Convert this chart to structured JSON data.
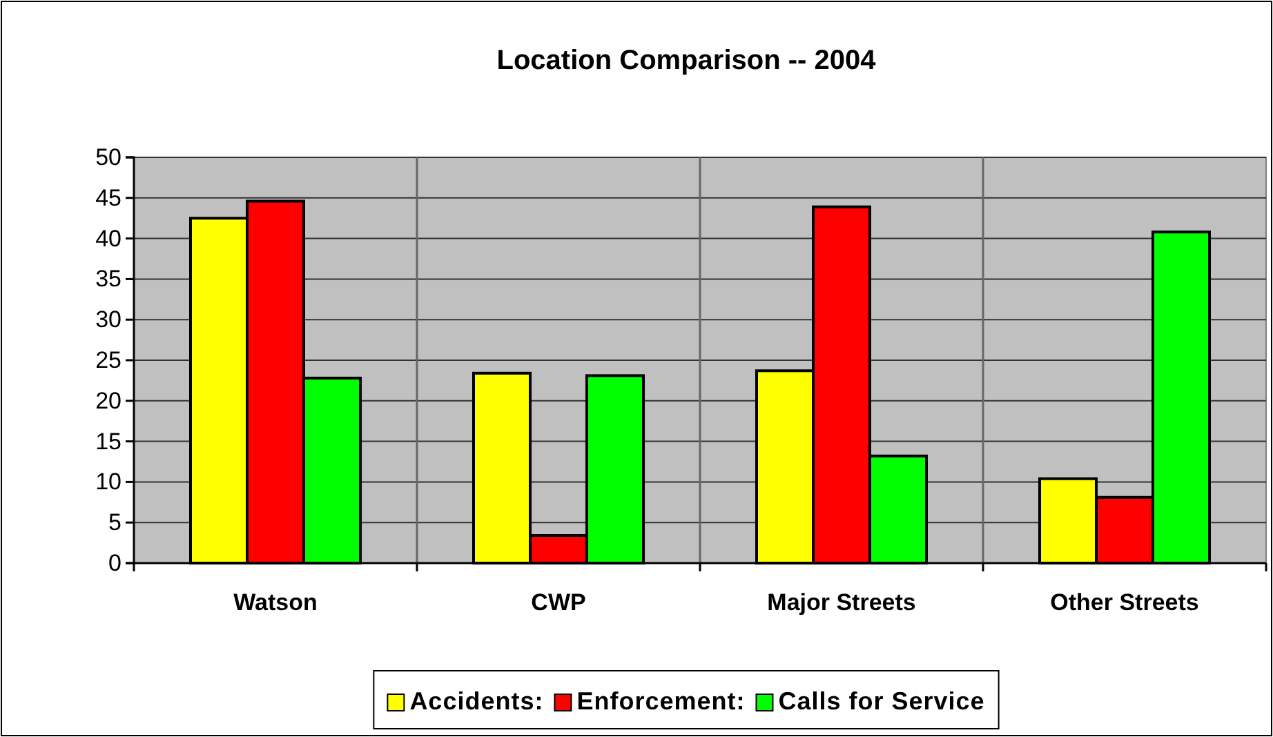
{
  "chart_data": {
    "type": "bar",
    "title": "Location Comparison -- 2004",
    "categories": [
      "Watson",
      "CWP",
      "Major Streets",
      "Other Streets"
    ],
    "series": [
      {
        "name": "Accidents:",
        "color": "#ffff00",
        "values": [
          42.5,
          23.4,
          23.7,
          10.4
        ]
      },
      {
        "name": "Enforcement:",
        "color": "#ff0000",
        "values": [
          44.6,
          3.4,
          43.9,
          8.1
        ]
      },
      {
        "name": "Calls for Service",
        "color": "#00ff00",
        "values": [
          22.8,
          23.1,
          13.2,
          40.8
        ]
      }
    ],
    "ylim": [
      0,
      50
    ],
    "yticks": [
      0,
      5,
      10,
      15,
      20,
      25,
      30,
      35,
      40,
      45,
      50
    ],
    "grid": true,
    "legend": "bottom"
  }
}
